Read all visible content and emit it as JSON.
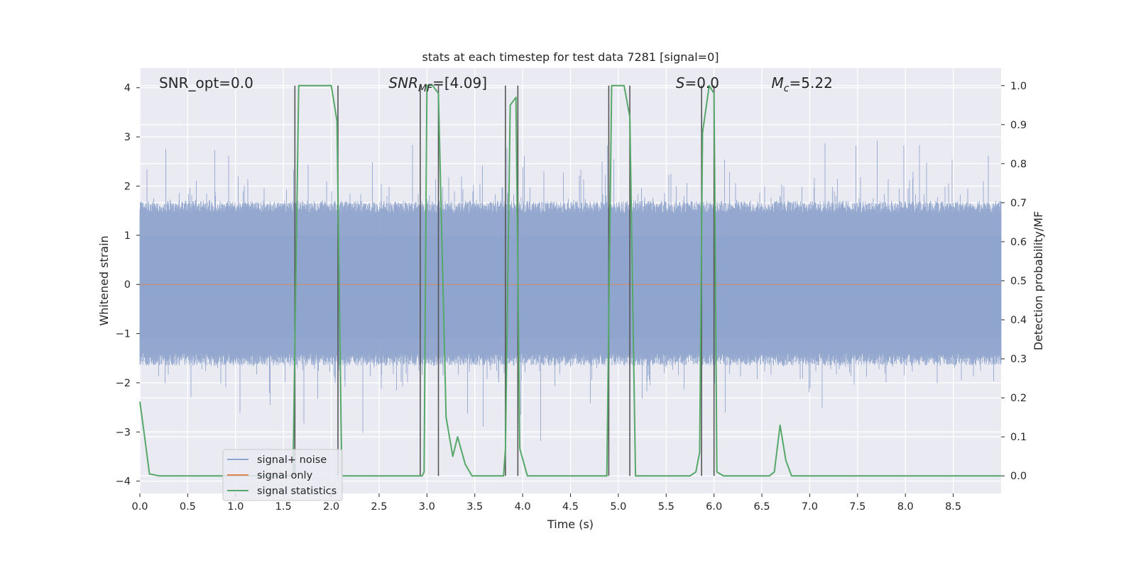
{
  "chart_data": {
    "type": "line",
    "title": "stats at each timestep for test data 7281 [signal=0]",
    "xlabel": "Time (s)",
    "ylabel": "Whitened strain",
    "ylabel_right": "Detection probability/MF",
    "xlim": [
      0.0,
      9.0
    ],
    "ylim": [
      -4.25,
      4.4
    ],
    "ylim_right": [
      -0.045,
      1.045
    ],
    "x_ticks": [
      0.0,
      0.5,
      1.0,
      1.5,
      2.0,
      2.5,
      3.0,
      3.5,
      4.0,
      4.5,
      5.0,
      5.5,
      6.0,
      6.5,
      7.0,
      7.5,
      8.0,
      8.5
    ],
    "x_tick_labels": [
      "0.0",
      "0.5",
      "1.0",
      "1.5",
      "2.0",
      "2.5",
      "3.0",
      "3.5",
      "4.0",
      "4.5",
      "5.0",
      "5.5",
      "6.0",
      "6.5",
      "7.0",
      "7.5",
      "8.0",
      "8.5"
    ],
    "y_ticks": [
      -4,
      -3,
      -2,
      -1,
      0,
      1,
      2,
      3,
      4
    ],
    "y_tick_labels": [
      "−4",
      "−3",
      "−2",
      "−1",
      "0",
      "1",
      "2",
      "3",
      "4"
    ],
    "y_ticks_right": [
      0.0,
      0.1,
      0.2,
      0.3,
      0.4,
      0.5,
      0.6,
      0.7,
      0.8,
      0.9,
      1.0
    ],
    "y_tick_labels_right": [
      "0.0",
      "0.1",
      "0.2",
      "0.3",
      "0.4",
      "0.5",
      "0.6",
      "0.7",
      "0.8",
      "0.9",
      "1.0"
    ],
    "grid": true,
    "legend_position": "lower-left",
    "annotations": [
      {
        "text": "SNR_opt=0.0",
        "x": 0.2,
        "y": 4.1
      },
      {
        "text": "SNR_MF=[4.09]",
        "x": 2.6,
        "y": 4.1
      },
      {
        "text": "S=0.0",
        "x": 5.6,
        "y": 4.1
      },
      {
        "text": "M_c=5.22",
        "x": 6.6,
        "y": 4.1
      }
    ],
    "series": [
      {
        "name": "signal+ noise",
        "color": "#8fa4cc",
        "kind": "noise",
        "x_start": 0.0,
        "x_end": 9.0,
        "typical_range": [
          -1.6,
          1.7
        ],
        "peak_max": 3.35,
        "peak_min": -3.75
      },
      {
        "name": "signal only",
        "color": "#dd8452",
        "values": [
          [
            0.0,
            0.0
          ],
          [
            9.0,
            0.0
          ]
        ]
      },
      {
        "name": "signal statistics",
        "color": "#55a868",
        "axis": "right",
        "values": [
          [
            0.0,
            0.19
          ],
          [
            0.05,
            0.1
          ],
          [
            0.1,
            0.005
          ],
          [
            0.2,
            0.0
          ],
          [
            1.55,
            0.0
          ],
          [
            1.6,
            0.0
          ],
          [
            1.66,
            1.0
          ],
          [
            1.7,
            1.0
          ],
          [
            2.0,
            1.0
          ],
          [
            2.06,
            0.91
          ],
          [
            2.11,
            0.0
          ],
          [
            2.95,
            0.0
          ],
          [
            2.97,
            0.01
          ],
          [
            3.0,
            1.0
          ],
          [
            3.06,
            1.0
          ],
          [
            3.12,
            0.98
          ],
          [
            3.2,
            0.15
          ],
          [
            3.27,
            0.05
          ],
          [
            3.32,
            0.1
          ],
          [
            3.4,
            0.03
          ],
          [
            3.47,
            0.0
          ],
          [
            3.8,
            0.0
          ],
          [
            3.82,
            0.07
          ],
          [
            3.87,
            0.95
          ],
          [
            3.93,
            0.97
          ],
          [
            3.97,
            0.07
          ],
          [
            4.05,
            0.0
          ],
          [
            4.88,
            0.0
          ],
          [
            4.93,
            1.0
          ],
          [
            5.06,
            1.0
          ],
          [
            5.12,
            0.92
          ],
          [
            5.18,
            0.0
          ],
          [
            5.75,
            0.0
          ],
          [
            5.81,
            0.01
          ],
          [
            5.85,
            0.06
          ],
          [
            5.88,
            0.88
          ],
          [
            5.95,
            1.0
          ],
          [
            6.0,
            0.98
          ],
          [
            6.03,
            0.01
          ],
          [
            6.1,
            0.0
          ],
          [
            6.58,
            0.0
          ],
          [
            6.63,
            0.01
          ],
          [
            6.69,
            0.13
          ],
          [
            6.75,
            0.04
          ],
          [
            6.81,
            0.0
          ],
          [
            9.0,
            0.0
          ]
        ]
      }
    ],
    "vertical_markers": [
      1.62,
      2.07,
      2.93,
      3.12,
      3.82,
      3.95,
      4.9,
      5.12,
      5.87,
      6.0
    ]
  }
}
